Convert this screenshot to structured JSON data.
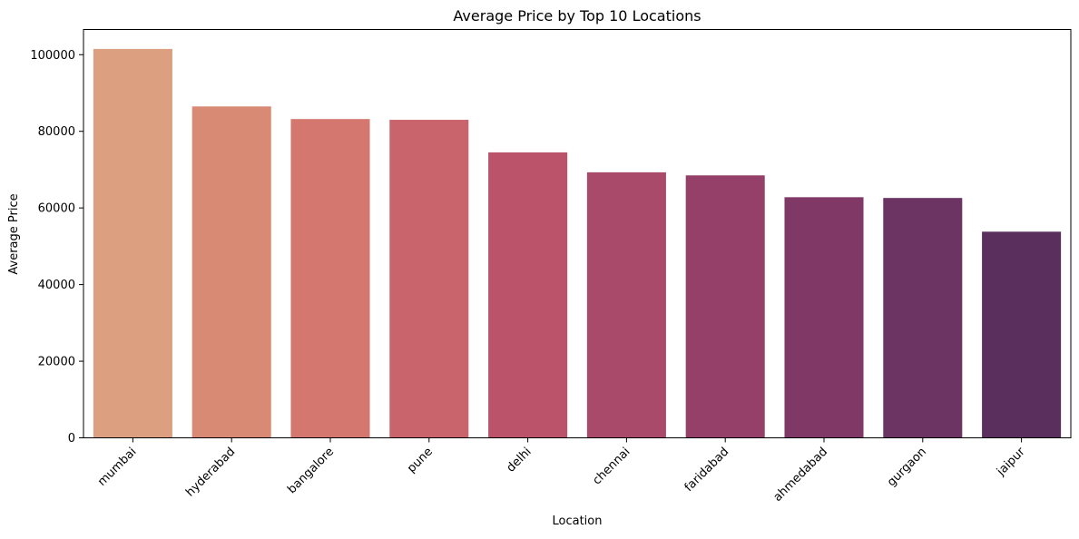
{
  "chart_data": {
    "type": "bar",
    "title": "Average Price by Top 10 Locations",
    "xlabel": "Location",
    "ylabel": "Average Price",
    "categories": [
      "mumbai",
      "hyderabad",
      "bangalore",
      "pune",
      "delhi",
      "chennai",
      "faridabad",
      "ahmedabad",
      "gurgaon",
      "jaipur"
    ],
    "values": [
      101500,
      86500,
      83200,
      83000,
      74500,
      69300,
      68500,
      62800,
      62600,
      53800
    ],
    "yticks": [
      0,
      20000,
      40000,
      60000,
      80000,
      100000
    ],
    "ylim": [
      0,
      106575
    ],
    "grid": false,
    "legend": "none",
    "colors": [
      "#dc9f80",
      "#d88a74",
      "#d3776f",
      "#c9646d",
      "#bb546a",
      "#a94a6a",
      "#944069",
      "#803966",
      "#6b3463",
      "#5a2f5e"
    ]
  }
}
